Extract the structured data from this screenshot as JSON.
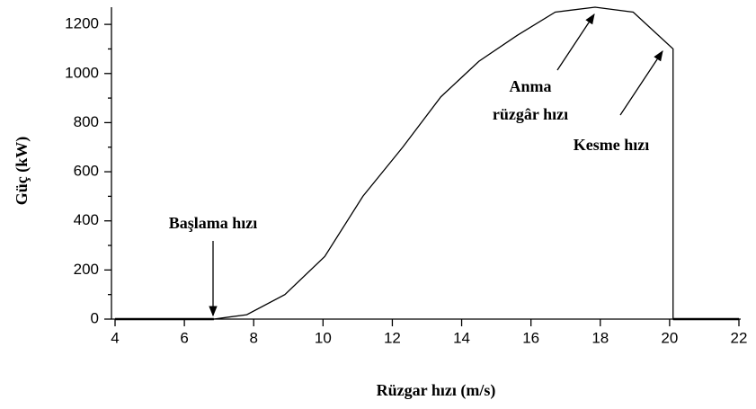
{
  "chart_data": {
    "type": "line",
    "xlabel": "Rüzgar hızı (m/s)",
    "ylabel": "Güç (kW)",
    "x": [
      4,
      6.85,
      7.8,
      8.9,
      10.05,
      11.15,
      12.3,
      13.4,
      14.5,
      15.6,
      16.7,
      17.85,
      18.95,
      20.1,
      20.1,
      22
    ],
    "values": [
      0,
      0,
      18,
      100,
      255,
      500,
      700,
      905,
      1050,
      1155,
      1250,
      1270,
      1250,
      1100,
      0,
      0
    ],
    "color": "#000000",
    "xlim": [
      4,
      22
    ],
    "xticks": [
      4,
      6,
      8,
      10,
      12,
      14,
      16,
      18,
      20,
      22
    ],
    "ylim": [
      0,
      1270
    ],
    "yticks": [
      0,
      200,
      400,
      600,
      800,
      1000,
      1200
    ],
    "annotations": [
      {
        "lines": [
          "Başlama hızı"
        ]
      },
      {
        "lines": [
          "Anma",
          "rüzgâr hızı"
        ]
      },
      {
        "lines": [
          "Kesme hızı"
        ]
      }
    ]
  }
}
